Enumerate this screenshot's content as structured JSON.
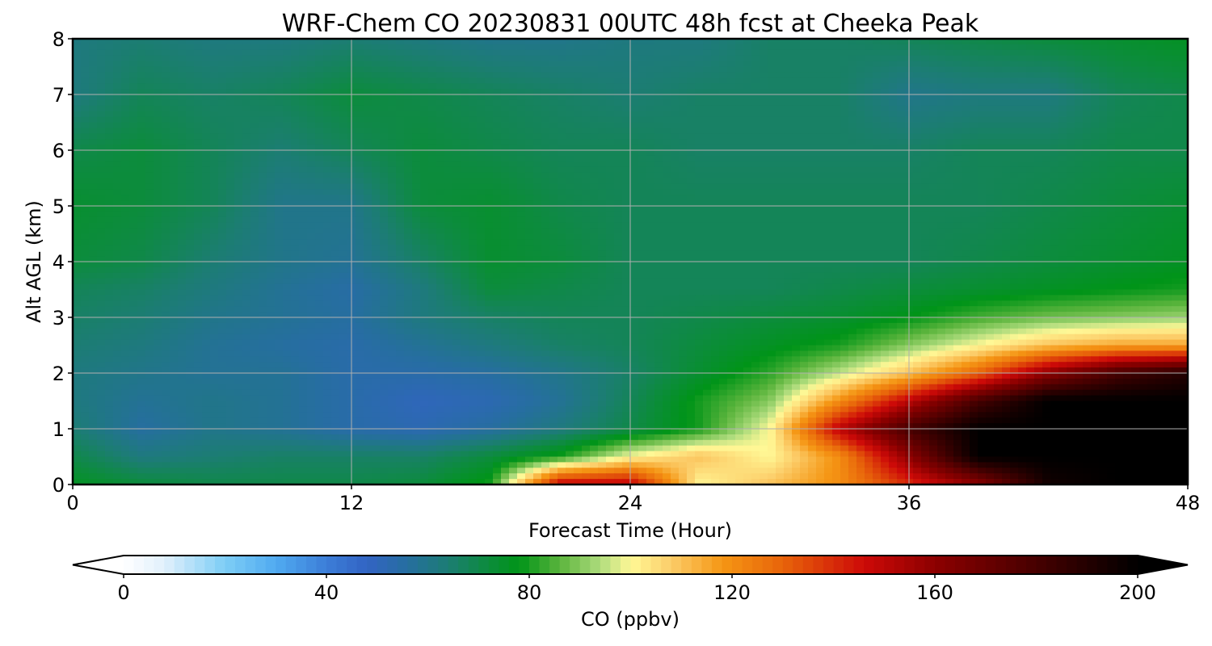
{
  "chart_data": {
    "type": "heatmap",
    "title": "WRF-Chem CO  20230831 00UTC 48h fcst at Cheeka Peak",
    "xlabel": "Forecast Time (Hour)",
    "ylabel": "Alt AGL (km)",
    "xlim": [
      0,
      48
    ],
    "ylim": [
      0,
      8
    ],
    "x_ticks": [
      "0",
      "12",
      "24",
      "36",
      "48"
    ],
    "y_ticks": [
      "0",
      "1",
      "2",
      "3",
      "4",
      "5",
      "6",
      "7",
      "8"
    ],
    "grid": true,
    "x": [
      0,
      3,
      6,
      9,
      12,
      15,
      18,
      21,
      24,
      27,
      30,
      33,
      36,
      39,
      42,
      45,
      48
    ],
    "y": [
      0,
      0.5,
      1,
      1.5,
      2,
      2.5,
      3,
      3.5,
      4,
      5,
      6,
      7,
      8
    ],
    "values": [
      [
        76,
        72,
        70,
        70,
        70,
        72,
        80,
        150,
        150,
        100,
        110,
        120,
        140,
        160,
        195,
        200,
        200
      ],
      [
        70,
        62,
        64,
        66,
        66,
        66,
        72,
        80,
        100,
        110,
        100,
        120,
        160,
        200,
        200,
        200,
        200
      ],
      [
        64,
        56,
        60,
        58,
        54,
        52,
        56,
        62,
        70,
        80,
        100,
        150,
        180,
        200,
        200,
        200,
        200
      ],
      [
        62,
        58,
        60,
        58,
        54,
        50,
        52,
        58,
        68,
        80,
        90,
        120,
        150,
        180,
        200,
        200,
        200
      ],
      [
        62,
        60,
        58,
        58,
        54,
        54,
        56,
        60,
        66,
        74,
        82,
        95,
        110,
        130,
        160,
        180,
        190
      ],
      [
        64,
        62,
        58,
        56,
        54,
        58,
        62,
        66,
        68,
        72,
        76,
        80,
        90,
        100,
        110,
        115,
        115
      ],
      [
        66,
        64,
        60,
        58,
        56,
        62,
        66,
        68,
        68,
        70,
        72,
        74,
        78,
        84,
        88,
        90,
        92
      ],
      [
        68,
        66,
        62,
        58,
        55,
        62,
        72,
        70,
        68,
        68,
        68,
        70,
        72,
        74,
        76,
        78,
        80
      ],
      [
        72,
        70,
        64,
        60,
        58,
        66,
        74,
        72,
        68,
        68,
        68,
        68,
        68,
        70,
        72,
        74,
        76
      ],
      [
        74,
        72,
        68,
        60,
        60,
        72,
        74,
        70,
        68,
        68,
        68,
        68,
        68,
        68,
        70,
        72,
        74
      ],
      [
        70,
        72,
        68,
        64,
        68,
        72,
        70,
        68,
        68,
        66,
        66,
        66,
        66,
        68,
        68,
        70,
        70
      ],
      [
        62,
        68,
        66,
        68,
        72,
        70,
        68,
        66,
        64,
        66,
        66,
        66,
        60,
        62,
        62,
        68,
        70
      ],
      [
        62,
        64,
        62,
        62,
        64,
        62,
        60,
        60,
        62,
        62,
        66,
        66,
        68,
        70,
        72,
        74,
        76
      ]
    ],
    "colorbar": {
      "label": "CO  (ppbv)",
      "ticks": [
        "0",
        "40",
        "80",
        "120",
        "160",
        "200"
      ],
      "range": [
        0,
        200
      ],
      "extend": "both"
    }
  }
}
